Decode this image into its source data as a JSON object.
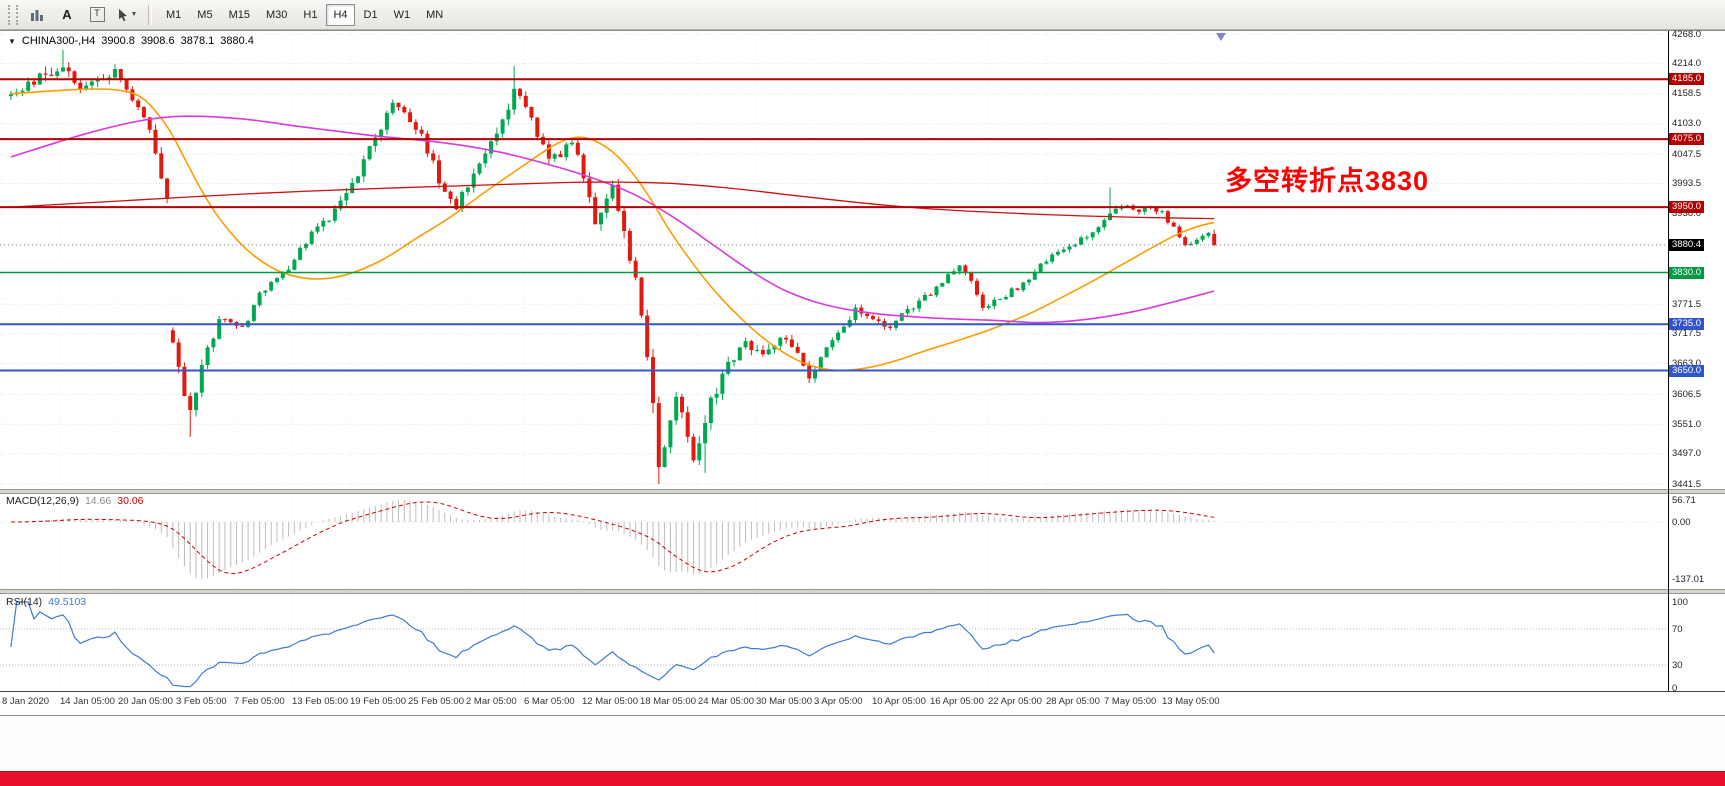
{
  "window": {
    "taskbar_color": "#e8112d"
  },
  "toolbar": {
    "text_tool_label": "A",
    "label_tool_label": "T",
    "timeframes": [
      "M1",
      "M5",
      "M15",
      "M30",
      "H1",
      "H4",
      "D1",
      "W1",
      "MN"
    ],
    "active_timeframe": "H4"
  },
  "chart": {
    "symbol_period": "CHINA300-,H4",
    "ohlc_text": {
      "open": "3900.8",
      "high": "3908.6",
      "low": "3878.1",
      "close": "3880.4"
    },
    "annotation": {
      "text": "多空转折点3830",
      "color": "#ff0000"
    },
    "current_price": 3880.4,
    "y_axis_grid_labels": [
      4268.0,
      4214.0,
      4158.5,
      4103.0,
      4047.5,
      3993.5,
      3938.0,
      3882.5,
      3827.0,
      3771.5,
      3717.5,
      3663.0,
      3606.5,
      3551.0,
      3497.0,
      3441.5
    ],
    "levels": [
      {
        "price": 4185.0,
        "label": "4185.0",
        "color": "#b40000",
        "width": 2
      },
      {
        "price": 4075.0,
        "label": "4075.0",
        "color": "#b40000",
        "width": 2
      },
      {
        "price": 3950.0,
        "label": "3950.0",
        "color": "#b40000",
        "width": 2
      },
      {
        "price": 3830.0,
        "label": "3830.0",
        "color": "#009944",
        "width": 1.6
      },
      {
        "price": 3735.0,
        "label": "3735.0",
        "color": "#3355cc",
        "width": 2
      },
      {
        "price": 3650.0,
        "label": "3650.0",
        "color": "#3355cc",
        "width": 2
      }
    ],
    "x_axis_labels": [
      "8 Jan 2020",
      "14 Jan 05:00",
      "20 Jan 05:00",
      "3 Feb 05:00",
      "7 Feb 05:00",
      "13 Feb 05:00",
      "19 Feb 05:00",
      "25 Feb 05:00",
      "2 Mar 05:00",
      "6 Mar 05:00",
      "12 Mar 05:00",
      "18 Mar 05:00",
      "24 Mar 05:00",
      "30 Mar 05:00",
      "3 Apr 05:00",
      "10 Apr 05:00",
      "16 Apr 05:00",
      "22 Apr 05:00",
      "28 Apr 05:00",
      "7 May 05:00",
      "13 May 05:00"
    ]
  },
  "chart_data": {
    "type": "candlestick",
    "symbol": "CHINA300-",
    "timeframe": "H4",
    "title": "CHINA300-,H4 3900.8 3908.6 3878.1 3880.4",
    "ylim": [
      3441.5,
      4268.0
    ],
    "candle_count": 209,
    "colors": {
      "up": "#00a84f",
      "down": "#e2190f",
      "ma_fast": "#ff9c00",
      "ma_mid": "#d83cd8",
      "ma_slow": "#cc1111"
    },
    "price_path_anchors": [
      [
        0,
        4152,
        18
      ],
      [
        3,
        4178,
        18
      ],
      [
        7,
        4196,
        26
      ],
      [
        9,
        4210,
        30
      ],
      [
        12,
        4168,
        20
      ],
      [
        15,
        4188,
        20
      ],
      [
        18,
        4196,
        18
      ],
      [
        21,
        4150,
        16
      ],
      [
        24,
        4090,
        18
      ],
      [
        26,
        4005,
        22
      ],
      [
        27,
        3958,
        22
      ],
      [
        28,
        3695,
        32
      ],
      [
        30,
        3602,
        30
      ],
      [
        31,
        3584,
        26
      ],
      [
        34,
        3690,
        22
      ],
      [
        36,
        3744,
        18
      ],
      [
        40,
        3726,
        16
      ],
      [
        43,
        3792,
        16
      ],
      [
        47,
        3824,
        16
      ],
      [
        52,
        3898,
        16
      ],
      [
        56,
        3944,
        18
      ],
      [
        60,
        4014,
        18
      ],
      [
        63,
        4074,
        20
      ],
      [
        66,
        4140,
        20
      ],
      [
        68,
        4126,
        18
      ],
      [
        70,
        4100,
        18
      ],
      [
        73,
        4030,
        20
      ],
      [
        75,
        3974,
        20
      ],
      [
        77,
        3950,
        18
      ],
      [
        80,
        4010,
        20
      ],
      [
        83,
        4064,
        20
      ],
      [
        86,
        4130,
        22
      ],
      [
        87,
        4166,
        22
      ],
      [
        88,
        4154,
        20
      ],
      [
        90,
        4110,
        20
      ],
      [
        93,
        4034,
        20
      ],
      [
        95,
        4048,
        16
      ],
      [
        97,
        4070,
        16
      ],
      [
        99,
        4010,
        22
      ],
      [
        101,
        3928,
        26
      ],
      [
        103,
        3970,
        20
      ],
      [
        104,
        3986,
        18
      ],
      [
        106,
        3908,
        26
      ],
      [
        108,
        3820,
        30
      ],
      [
        110,
        3684,
        34
      ],
      [
        112,
        3480,
        34
      ],
      [
        113,
        3514,
        28
      ],
      [
        115,
        3610,
        26
      ],
      [
        117,
        3532,
        26
      ],
      [
        118,
        3486,
        26
      ],
      [
        120,
        3558,
        28
      ],
      [
        121,
        3590,
        24
      ],
      [
        124,
        3662,
        20
      ],
      [
        127,
        3700,
        18
      ],
      [
        130,
        3674,
        18
      ],
      [
        133,
        3714,
        18
      ],
      [
        136,
        3684,
        16
      ],
      [
        138,
        3642,
        16
      ],
      [
        140,
        3670,
        14
      ],
      [
        143,
        3720,
        14
      ],
      [
        146,
        3760,
        14
      ],
      [
        149,
        3744,
        12
      ],
      [
        152,
        3730,
        13
      ],
      [
        155,
        3762,
        13
      ],
      [
        158,
        3784,
        13
      ],
      [
        160,
        3802,
        12
      ],
      [
        162,
        3826,
        12
      ],
      [
        164,
        3846,
        12
      ],
      [
        166,
        3810,
        13
      ],
      [
        168,
        3766,
        13
      ],
      [
        171,
        3784,
        12
      ],
      [
        174,
        3802,
        12
      ],
      [
        177,
        3830,
        12
      ],
      [
        180,
        3866,
        12
      ],
      [
        183,
        3880,
        12
      ],
      [
        186,
        3896,
        12
      ],
      [
        189,
        3922,
        13
      ],
      [
        192,
        3954,
        13
      ],
      [
        195,
        3942,
        10
      ],
      [
        197,
        3950,
        10
      ],
      [
        199,
        3938,
        10
      ],
      [
        201,
        3910,
        11
      ],
      [
        203,
        3878,
        11
      ],
      [
        205,
        3893,
        11
      ],
      [
        207,
        3898,
        11
      ],
      [
        208,
        3880.4,
        10
      ]
    ],
    "wick_extremes": [
      [
        9,
        "high",
        4239
      ],
      [
        31,
        "low",
        3528
      ],
      [
        87,
        "high",
        4209
      ],
      [
        112,
        "low",
        3441.5
      ],
      [
        120,
        "low",
        3462
      ],
      [
        190,
        "high",
        3986
      ]
    ],
    "last_candle": {
      "open": 3900.8,
      "high": 3908.6,
      "low": 3878.1,
      "close": 3880.4
    },
    "moving_averages": [
      {
        "name": "ma-fast-orange",
        "color": "#ff9c00",
        "width": 1.6,
        "points": [
          [
            0,
            4158
          ],
          [
            8,
            4164
          ],
          [
            14,
            4167
          ],
          [
            19,
            4164
          ],
          [
            23,
            4148
          ],
          [
            27,
            4098
          ],
          [
            30,
            4040
          ],
          [
            33,
            3980
          ],
          [
            36,
            3930
          ],
          [
            40,
            3880
          ],
          [
            44,
            3846
          ],
          [
            48,
            3826
          ],
          [
            53,
            3818
          ],
          [
            58,
            3826
          ],
          [
            64,
            3852
          ],
          [
            70,
            3892
          ],
          [
            76,
            3932
          ],
          [
            82,
            3978
          ],
          [
            88,
            4022
          ],
          [
            93,
            4058
          ],
          [
            96,
            4074
          ],
          [
            99,
            4078
          ],
          [
            102,
            4066
          ],
          [
            105,
            4042
          ],
          [
            108,
            4005
          ],
          [
            111,
            3958
          ],
          [
            114,
            3905
          ],
          [
            118,
            3845
          ],
          [
            122,
            3792
          ],
          [
            126,
            3748
          ],
          [
            130,
            3710
          ],
          [
            134,
            3680
          ],
          [
            138,
            3660
          ],
          [
            143,
            3650
          ],
          [
            148,
            3655
          ],
          [
            153,
            3668
          ],
          [
            158,
            3686
          ],
          [
            164,
            3706
          ],
          [
            170,
            3728
          ],
          [
            176,
            3754
          ],
          [
            182,
            3786
          ],
          [
            188,
            3820
          ],
          [
            193,
            3850
          ],
          [
            198,
            3880
          ],
          [
            202,
            3902
          ],
          [
            205,
            3914
          ],
          [
            208,
            3922
          ]
        ]
      },
      {
        "name": "ma-mid-magenta",
        "color": "#d83cd8",
        "width": 1.6,
        "points": [
          [
            0,
            4042
          ],
          [
            12,
            4082
          ],
          [
            22,
            4108
          ],
          [
            30,
            4117
          ],
          [
            40,
            4112
          ],
          [
            50,
            4098
          ],
          [
            62,
            4082
          ],
          [
            75,
            4068
          ],
          [
            85,
            4050
          ],
          [
            95,
            4022
          ],
          [
            102,
            3998
          ],
          [
            108,
            3972
          ],
          [
            115,
            3928
          ],
          [
            122,
            3876
          ],
          [
            128,
            3832
          ],
          [
            134,
            3796
          ],
          [
            141,
            3770
          ],
          [
            150,
            3754
          ],
          [
            160,
            3746
          ],
          [
            170,
            3742
          ],
          [
            178,
            3738
          ],
          [
            186,
            3744
          ],
          [
            194,
            3758
          ],
          [
            201,
            3776
          ],
          [
            208,
            3796
          ]
        ]
      },
      {
        "name": "ma-slow-red",
        "color": "#cc1111",
        "width": 1.3,
        "points": [
          [
            0,
            3950
          ],
          [
            20,
            3962
          ],
          [
            40,
            3974
          ],
          [
            60,
            3983
          ],
          [
            80,
            3990
          ],
          [
            95,
            3995
          ],
          [
            105,
            3996
          ],
          [
            115,
            3993
          ],
          [
            125,
            3984
          ],
          [
            135,
            3972
          ],
          [
            145,
            3960
          ],
          [
            155,
            3950
          ],
          [
            165,
            3943
          ],
          [
            175,
            3938
          ],
          [
            185,
            3934
          ],
          [
            196,
            3931
          ],
          [
            208,
            3929
          ]
        ]
      }
    ],
    "indicators": {
      "macd": {
        "name": "MACD(12,26,9)",
        "value_main": "14.66",
        "value_signal": "30.06",
        "params": [
          12,
          26,
          9
        ],
        "axis_labels": [
          "56.71",
          "0.00",
          "-137.01"
        ],
        "scale": {
          "max": 56.71,
          "min": -137.01
        },
        "histogram_color": "#bdbdbd",
        "signal_color": "#d40000"
      },
      "rsi": {
        "name": "RSI(14)",
        "value": "49.5103",
        "period": 14,
        "axis_labels": [
          "100",
          "70",
          "30",
          "0"
        ],
        "levels": [
          70,
          30
        ],
        "line_color": "#3e7bd2",
        "level_color": "#b9b9b9"
      }
    }
  }
}
